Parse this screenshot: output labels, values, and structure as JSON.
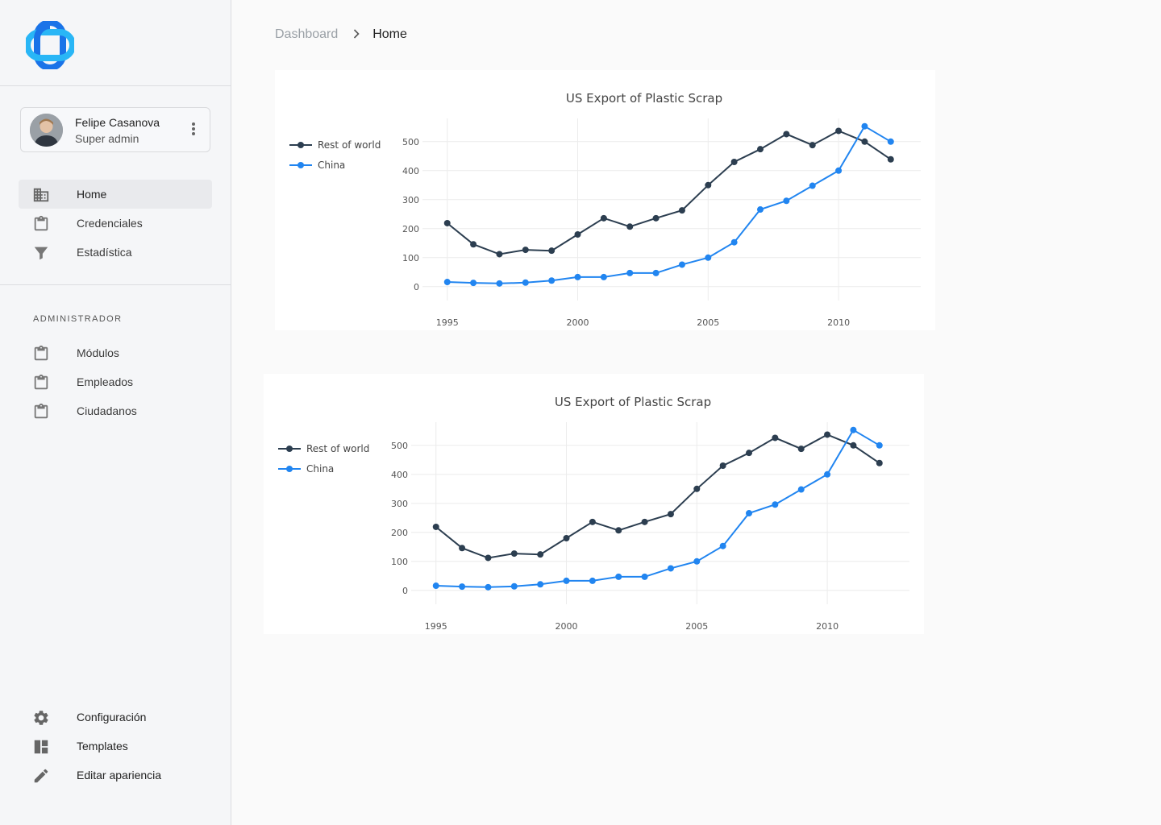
{
  "sidebar": {
    "logo": {
      "icon": "brand-logo-icon",
      "colors": [
        "#1a73e8",
        "#29b6f6"
      ]
    },
    "user": {
      "name": "Felipe Casanova",
      "role": "Super admin",
      "menu_icon": "more-vert-icon"
    },
    "nav": [
      {
        "label": "Home",
        "icon": "building-icon",
        "active": true
      },
      {
        "label": "Credenciales",
        "icon": "clipboard-icon"
      },
      {
        "label": "Estadística",
        "icon": "filter-icon"
      }
    ],
    "admin_title": "ADMINISTRADOR",
    "admin_nav": [
      {
        "label": "Módulos",
        "icon": "clipboard-icon"
      },
      {
        "label": "Empleados",
        "icon": "clipboard-icon"
      },
      {
        "label": "Ciudadanos",
        "icon": "clipboard-icon"
      }
    ],
    "bottom_nav": [
      {
        "label": "Configuración",
        "icon": "gear-icon"
      },
      {
        "label": "Templates",
        "icon": "dashboard-layout-icon"
      },
      {
        "label": "Editar apariencia",
        "icon": "pencil-icon"
      }
    ]
  },
  "breadcrumb": {
    "parent": "Dashboard",
    "current": "Home",
    "separator_icon": "chevron-right-icon"
  },
  "colors": {
    "rest_of_world": "#2c3e50",
    "china": "#2185f0",
    "grid": "#ececec"
  },
  "chart_data": [
    {
      "type": "line",
      "title": "US Export of Plastic Scrap",
      "legend_position": "left",
      "grid": true,
      "x": [
        1995,
        1996,
        1997,
        1998,
        1999,
        2000,
        2001,
        2002,
        2003,
        2004,
        2005,
        2006,
        2007,
        2008,
        2009,
        2010,
        2011,
        2012
      ],
      "x_ticks": [
        1995,
        2000,
        2005,
        2010
      ],
      "y_ticks": [
        0,
        100,
        200,
        300,
        400,
        500
      ],
      "series": [
        {
          "name": "Rest of world",
          "values": [
            219,
            146,
            112,
            127,
            124,
            180,
            236,
            207,
            236,
            263,
            350,
            430,
            474,
            526,
            488,
            537,
            500,
            439
          ]
        },
        {
          "name": "China",
          "values": [
            16,
            13,
            11,
            14,
            21,
            33,
            33,
            47,
            47,
            76,
            100,
            153,
            266,
            296,
            348,
            400,
            553,
            500
          ]
        }
      ]
    },
    {
      "type": "line",
      "title": "US Export of Plastic Scrap",
      "legend_position": "left",
      "grid": true,
      "x": [
        1995,
        1996,
        1997,
        1998,
        1999,
        2000,
        2001,
        2002,
        2003,
        2004,
        2005,
        2006,
        2007,
        2008,
        2009,
        2010,
        2011,
        2012
      ],
      "x_ticks": [
        1995,
        2000,
        2005,
        2010
      ],
      "y_ticks": [
        0,
        100,
        200,
        300,
        400,
        500
      ],
      "series": [
        {
          "name": "Rest of world",
          "values": [
            219,
            146,
            112,
            127,
            124,
            180,
            236,
            207,
            236,
            263,
            350,
            430,
            474,
            526,
            488,
            537,
            500,
            439
          ]
        },
        {
          "name": "China",
          "values": [
            16,
            13,
            11,
            14,
            21,
            33,
            33,
            47,
            47,
            76,
            100,
            153,
            266,
            296,
            348,
            400,
            553,
            500
          ]
        }
      ]
    }
  ]
}
